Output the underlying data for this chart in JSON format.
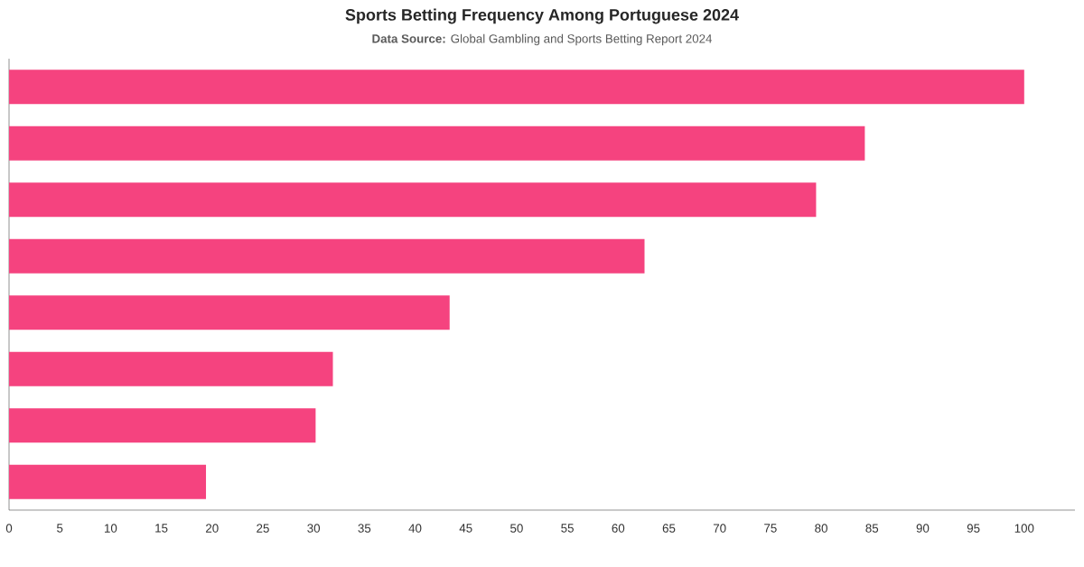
{
  "chart_data": {
    "type": "bar",
    "orientation": "horizontal",
    "title": "Sports Betting Frequency Among Portuguese 2024",
    "subtitle": "**Data Source:** Global Gambling and Sports Betting Report 2024",
    "categories": [
      null,
      null,
      null,
      null,
      null,
      null,
      null,
      null
    ],
    "values": [
      100,
      84.3,
      79.5,
      62.6,
      43.4,
      31.9,
      30.2,
      19.4
    ],
    "color": "#f5437f",
    "xlim": [
      0,
      105
    ],
    "xticks": [
      0,
      5,
      10,
      15,
      20,
      25,
      30,
      35,
      40,
      45,
      50,
      55,
      60,
      65,
      70,
      75,
      80,
      85,
      90,
      95,
      100
    ],
    "grid": false
  }
}
